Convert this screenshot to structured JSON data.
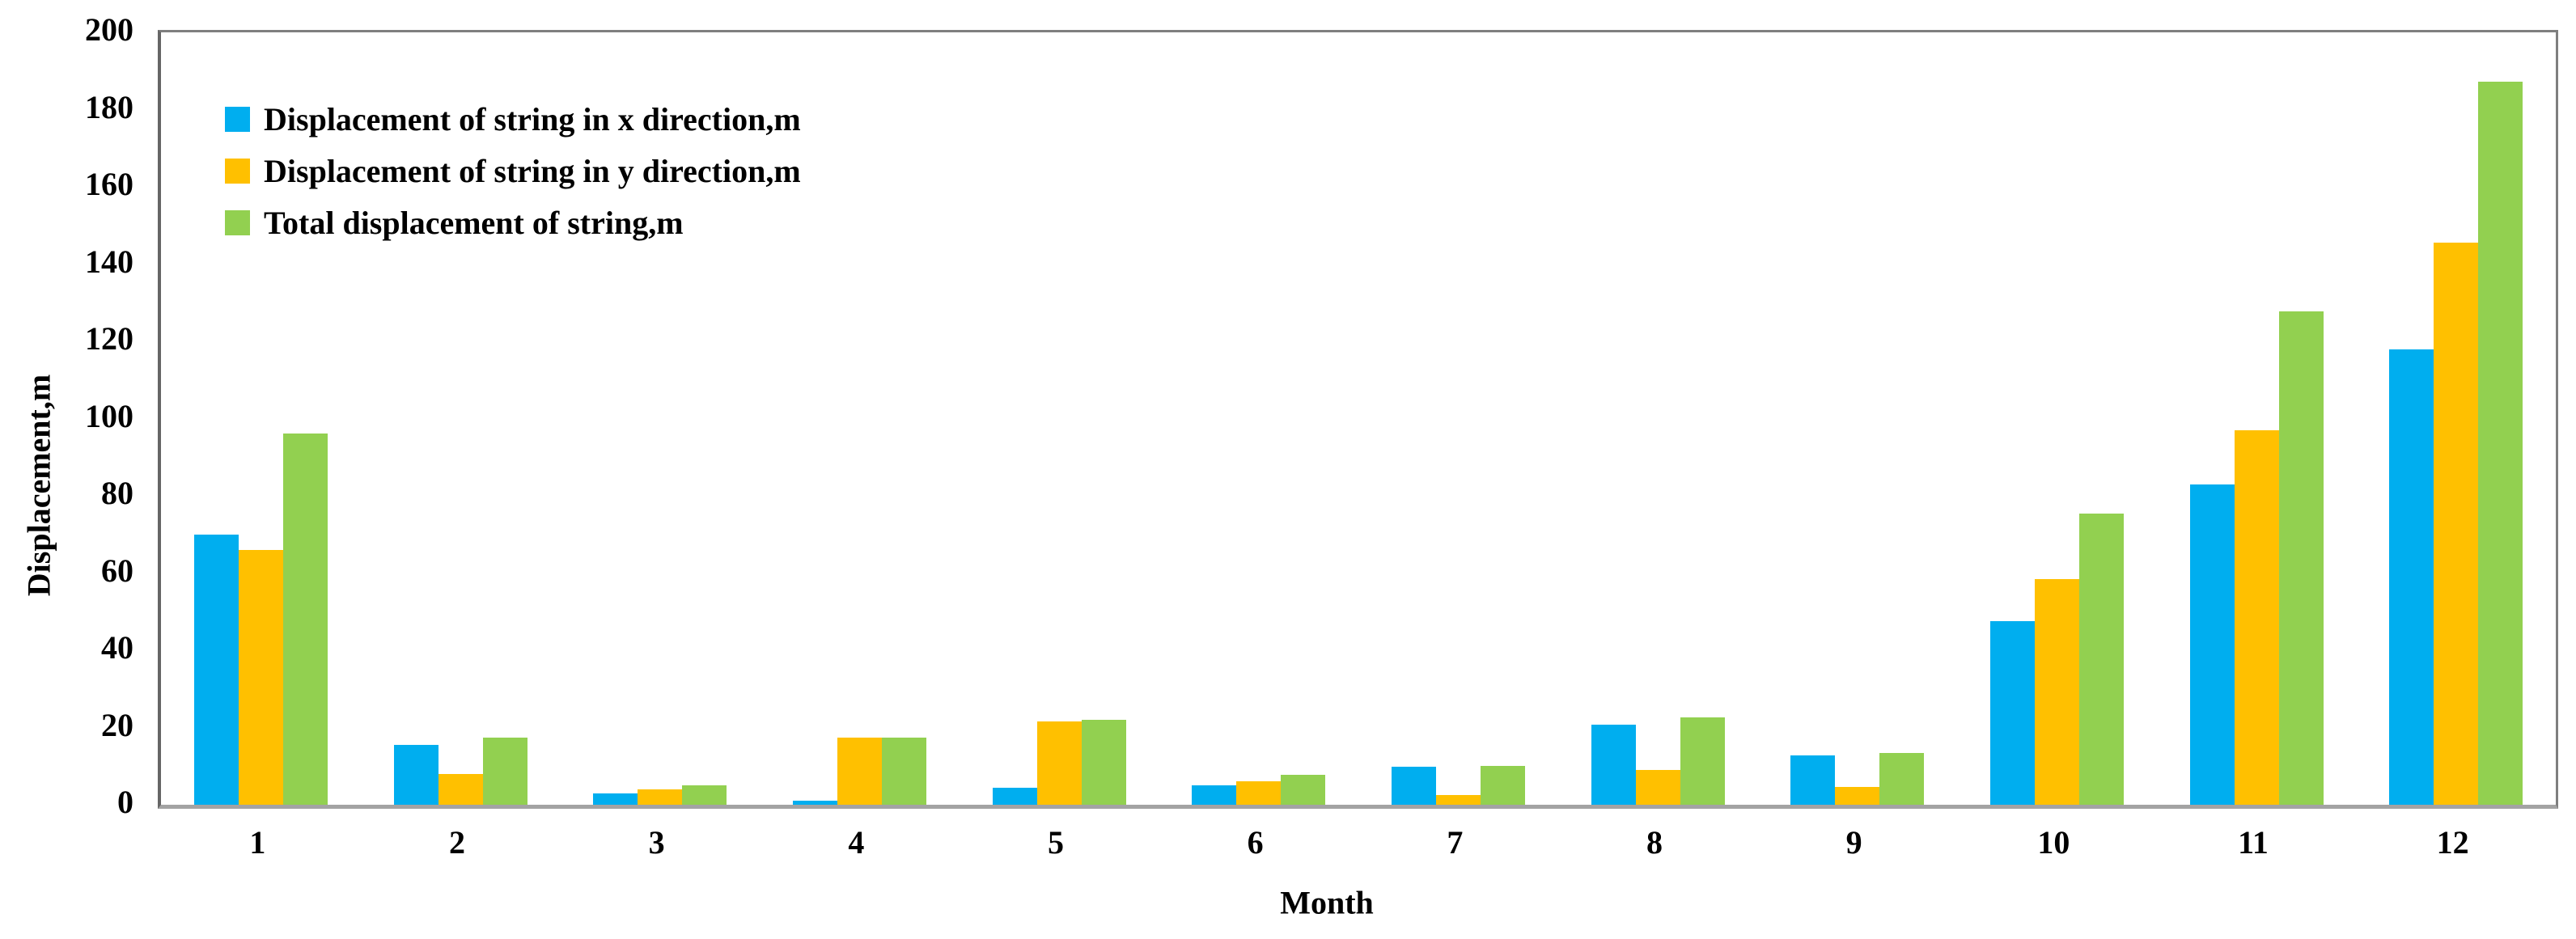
{
  "chart_data": {
    "type": "bar",
    "title": "",
    "categories": [
      "1",
      "2",
      "3",
      "4",
      "5",
      "6",
      "7",
      "8",
      "9",
      "10",
      "11",
      "12"
    ],
    "series": [
      {
        "name": "Displacement of string in x direction,m",
        "color": "#00AEEF",
        "values": [
          70,
          15.5,
          3,
          1,
          4.5,
          5,
          9.8,
          20.7,
          12.7,
          47.5,
          83,
          118
        ]
      },
      {
        "name": "Displacement of string in y direction,m",
        "color": "#FFC000",
        "values": [
          66,
          8,
          4,
          17.3,
          21.5,
          6,
          2.6,
          9.1,
          4.6,
          58.5,
          97,
          145.5
        ]
      },
      {
        "name": "Total displacement of string,m",
        "color": "#92D050",
        "values": [
          96.2,
          17.4,
          5,
          17.3,
          22,
          7.8,
          10.1,
          22.6,
          13.5,
          75.3,
          127.7,
          187.3
        ]
      }
    ],
    "xlabel": "Month",
    "ylabel": "Displacement,m",
    "ylim": [
      0,
      200
    ],
    "yticks": [
      0,
      20,
      40,
      60,
      80,
      100,
      120,
      140,
      160,
      180,
      200
    ],
    "grid": false,
    "legend_position": "top-left-inside",
    "frame_color": "#7f7f7f",
    "baseline_color": "#a3a3a3",
    "text_color": "#000000"
  }
}
